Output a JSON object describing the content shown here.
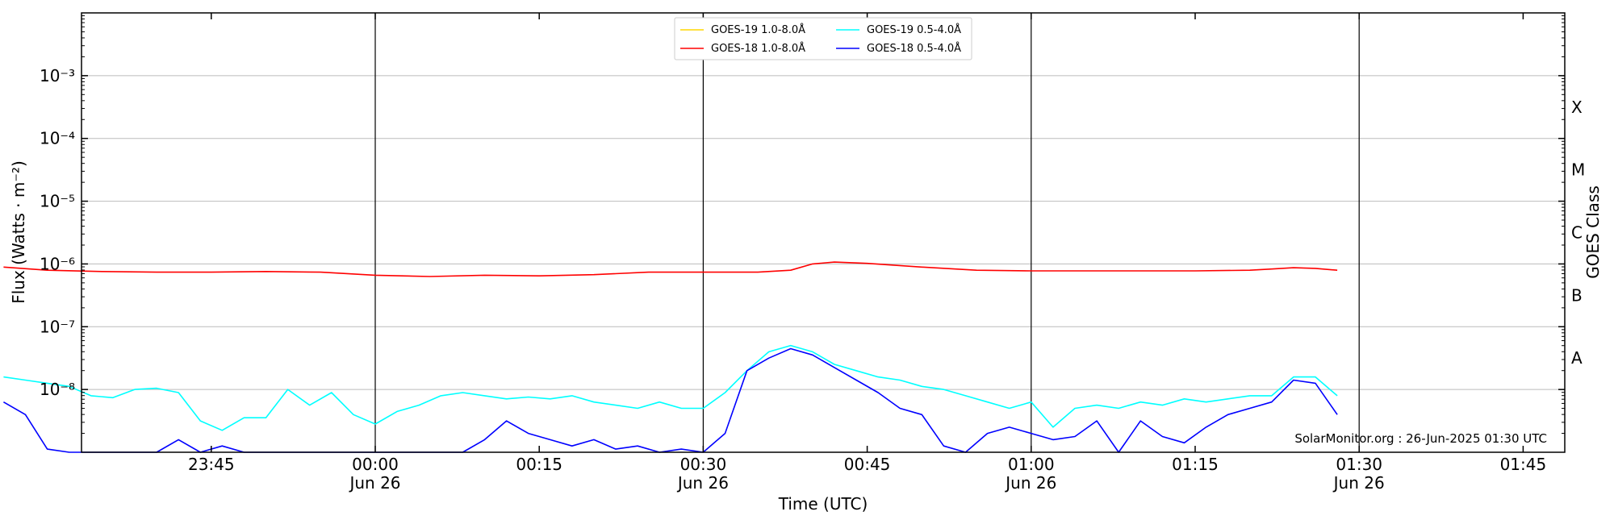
{
  "chart_data": {
    "type": "line",
    "xlabel": "Time (UTC)",
    "ylabel": "Flux (Watts · m⁻²)",
    "y2label": "GOES Class",
    "xlim": [
      "23:26",
      "01:50"
    ],
    "ylim": [
      1e-09,
      0.01
    ],
    "y_scale": "log",
    "y_ticks": [
      "10⁻³",
      "10⁻⁴",
      "10⁻⁵",
      "10⁻⁶",
      "10⁻⁷",
      "10⁻⁸"
    ],
    "y_tick_values": [
      -3,
      -4,
      -5,
      -6,
      -7,
      -8
    ],
    "x_ticks": [
      {
        "t": "23:45",
        "label": "23:45",
        "sub": ""
      },
      {
        "t": "00:00",
        "label": "00:00",
        "sub": "Jun 26"
      },
      {
        "t": "00:15",
        "label": "00:15",
        "sub": ""
      },
      {
        "t": "00:30",
        "label": "00:30",
        "sub": "Jun 26"
      },
      {
        "t": "00:45",
        "label": "00:45",
        "sub": ""
      },
      {
        "t": "01:00",
        "label": "01:00",
        "sub": "Jun 26"
      },
      {
        "t": "01:15",
        "label": "01:15",
        "sub": ""
      },
      {
        "t": "01:30",
        "label": "01:30",
        "sub": "Jun 26"
      },
      {
        "t": "01:45",
        "label": "01:45",
        "sub": ""
      }
    ],
    "goes_classes": [
      {
        "label": "X",
        "exp": -3.5
      },
      {
        "label": "M",
        "exp": -4.5
      },
      {
        "label": "C",
        "exp": -5.5
      },
      {
        "label": "B",
        "exp": -6.5
      },
      {
        "label": "A",
        "exp": -7.5
      }
    ],
    "grid": true,
    "legend_position": "top-center",
    "credit": "SolarMonitor.org : 26-Jun-2025 01:30 UTC",
    "x_note": "x values are minutes after 23:00 UTC, 25 Jun 2025",
    "series": [
      {
        "name": "GOES-19 1.0-8.0Å",
        "color": "#ffd700",
        "x": [],
        "log_values": []
      },
      {
        "name": "GOES-18 1.0-8.0Å",
        "color": "#ff0000",
        "x": [
          26,
          30,
          35,
          40,
          45,
          50,
          55,
          60,
          65,
          70,
          75,
          80,
          85,
          90,
          95,
          98,
          100,
          102,
          105,
          110,
          115,
          120,
          125,
          130,
          135,
          140,
          142,
          144,
          146,
          148
        ],
        "log_values": [
          -6.05,
          -6.1,
          -6.12,
          -6.13,
          -6.13,
          -6.12,
          -6.13,
          -6.18,
          -6.2,
          -6.18,
          -6.19,
          -6.17,
          -6.13,
          -6.13,
          -6.13,
          -6.1,
          -6.0,
          -5.97,
          -5.99,
          -6.05,
          -6.1,
          -6.11,
          -6.11,
          -6.11,
          -6.11,
          -6.1,
          -6.08,
          -6.06,
          -6.07,
          -6.1
        ]
      },
      {
        "name": "GOES-19 0.5-4.0Å",
        "color": "#00ffff",
        "x": [
          26,
          28,
          30,
          32,
          34,
          36,
          38,
          40,
          42,
          44,
          46,
          48,
          50,
          52,
          54,
          56,
          58,
          60,
          62,
          64,
          66,
          68,
          70,
          72,
          74,
          76,
          78,
          80,
          82,
          84,
          86,
          88,
          90,
          92,
          94,
          96,
          98,
          100,
          102,
          104,
          106,
          108,
          110,
          112,
          114,
          116,
          118,
          120,
          122,
          124,
          126,
          128,
          130,
          132,
          134,
          136,
          138,
          140,
          142,
          144,
          146,
          148
        ],
        "log_values": [
          -7.8,
          -7.85,
          -7.9,
          -7.95,
          -8.1,
          -8.13,
          -8.0,
          -7.98,
          -8.05,
          -8.5,
          -8.65,
          -8.45,
          -8.45,
          -8.0,
          -8.25,
          -8.05,
          -8.4,
          -8.55,
          -8.35,
          -8.25,
          -8.1,
          -8.05,
          -8.1,
          -8.15,
          -8.12,
          -8.15,
          -8.1,
          -8.2,
          -8.25,
          -8.3,
          -8.2,
          -8.3,
          -8.3,
          -8.05,
          -7.7,
          -7.4,
          -7.3,
          -7.4,
          -7.6,
          -7.7,
          -7.8,
          -7.85,
          -7.95,
          -8.0,
          -8.1,
          -8.2,
          -8.3,
          -8.2,
          -8.6,
          -8.3,
          -8.25,
          -8.3,
          -8.2,
          -8.25,
          -8.15,
          -8.2,
          -8.15,
          -8.1,
          -8.1,
          -7.8,
          -7.8,
          -8.1
        ]
      },
      {
        "name": "GOES-18 0.5-4.0Å",
        "color": "#0000ff",
        "x": [
          26,
          28,
          30,
          32,
          34,
          36,
          38,
          40,
          42,
          44,
          46,
          48,
          50,
          52,
          54,
          56,
          58,
          60,
          62,
          64,
          66,
          68,
          70,
          72,
          74,
          76,
          78,
          80,
          82,
          84,
          86,
          88,
          90,
          92,
          94,
          96,
          98,
          100,
          102,
          104,
          106,
          108,
          110,
          112,
          114,
          116,
          118,
          120,
          122,
          124,
          126,
          128,
          130,
          132,
          134,
          136,
          138,
          140,
          142,
          144,
          146,
          148
        ],
        "log_values": [
          -8.2,
          -8.4,
          -8.95,
          -9.0,
          -9.0,
          -9.0,
          -9.0,
          -9.0,
          -8.8,
          -9.0,
          -8.9,
          -9.0,
          -9.0,
          -9.0,
          -9.0,
          -9.0,
          -9.0,
          -9.0,
          -9.0,
          -9.0,
          -9.0,
          -9.0,
          -8.8,
          -8.5,
          -8.7,
          -8.8,
          -8.9,
          -8.8,
          -8.95,
          -8.9,
          -9.0,
          -8.95,
          -9.0,
          -8.7,
          -7.7,
          -7.5,
          -7.35,
          -7.45,
          -7.65,
          -7.85,
          -8.05,
          -8.3,
          -8.4,
          -8.9,
          -9.0,
          -8.7,
          -8.6,
          -8.7,
          -8.8,
          -8.75,
          -8.5,
          -9.0,
          -8.5,
          -8.75,
          -8.85,
          -8.6,
          -8.4,
          -8.3,
          -8.2,
          -7.85,
          -7.9,
          -8.4
        ]
      }
    ]
  }
}
